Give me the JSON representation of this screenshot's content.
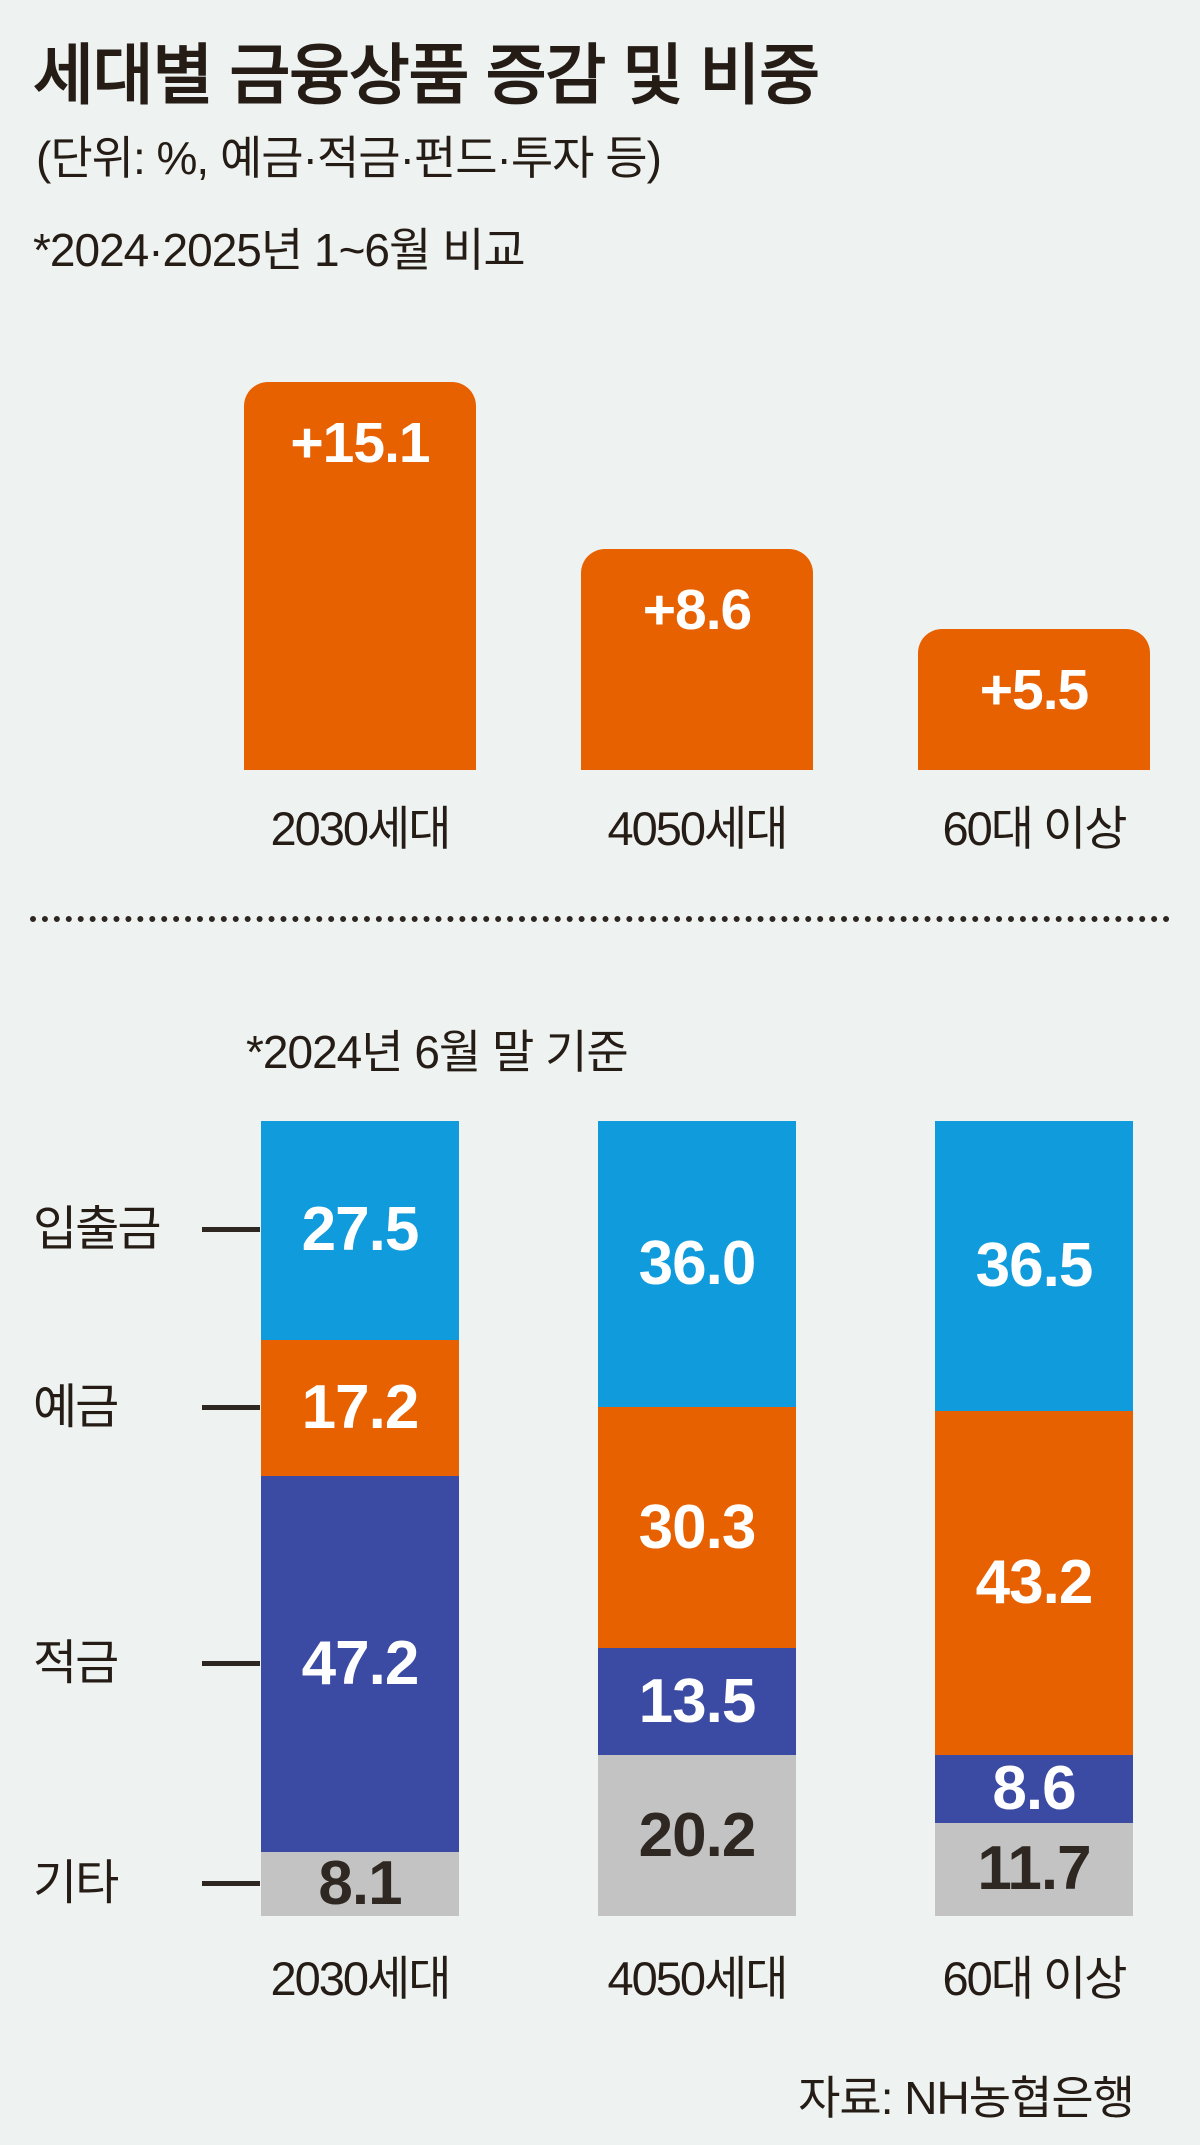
{
  "colors": {
    "background": "#eef3f1",
    "ink": "#251c16",
    "orange": "#e86100",
    "blue": "#0f9bdc",
    "navy": "#3b4aa2",
    "gray": "#c3c3c3",
    "dark_value_text": "#2f2722",
    "white_value_text": "#ffffff"
  },
  "header": {
    "title": "세대별 금융상품 증감 및 비중",
    "subtitle": "(단위: %, 예금·적금·펀드·투자 등)"
  },
  "source": "자료: NH농협은행",
  "chart_data": [
    {
      "type": "bar",
      "title": "세대별 금융상품 증감",
      "note": "*2024·2025년 1~6월 비교",
      "unit": "%",
      "categories": [
        "2030세대",
        "4050세대",
        "60대 이상"
      ],
      "values": [
        15.1,
        8.6,
        5.5
      ],
      "value_labels": [
        "+15.1",
        "+8.6",
        "+5.5"
      ],
      "bar_color": "#e86100",
      "ylim": [
        0,
        15.1
      ],
      "grid": false,
      "legend": "none"
    },
    {
      "type": "bar",
      "stacked": true,
      "title": "세대별 금융상품 비중",
      "note": "*2024년 6월 말 기준",
      "unit": "%",
      "categories": [
        "2030세대",
        "4050세대",
        "60대 이상"
      ],
      "series": [
        {
          "name": "입출금",
          "color": "#0f9bdc",
          "value_color": "#ffffff",
          "values": [
            27.5,
            36.0,
            36.5
          ]
        },
        {
          "name": "예금",
          "color": "#e86100",
          "value_color": "#ffffff",
          "values": [
            17.2,
            30.3,
            43.2
          ]
        },
        {
          "name": "적금",
          "color": "#3b4aa2",
          "value_color": "#ffffff",
          "values": [
            47.2,
            13.5,
            8.6
          ]
        },
        {
          "name": "기타",
          "color": "#c3c3c3",
          "value_color": "#2f2722",
          "values": [
            8.1,
            20.2,
            11.7
          ]
        }
      ],
      "ylim": [
        0,
        100
      ],
      "grid": false,
      "legend": "left-axis-labels"
    }
  ]
}
